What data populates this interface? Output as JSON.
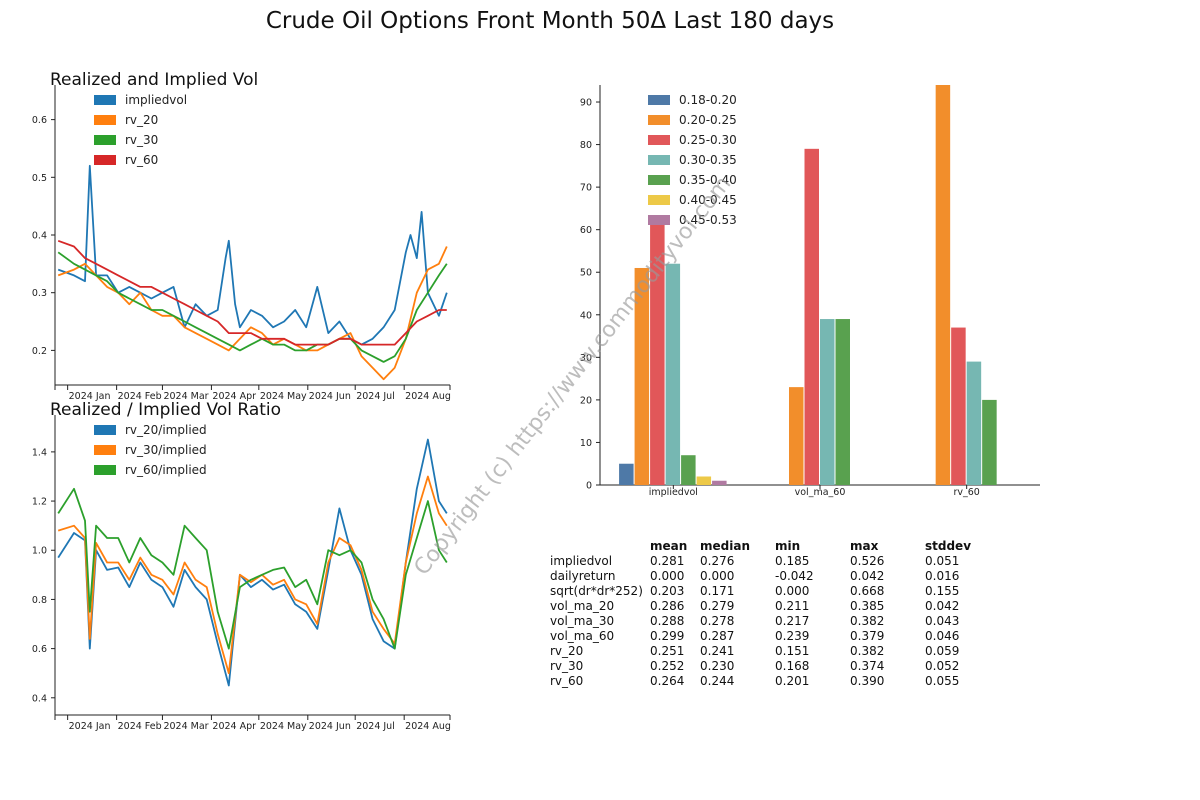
{
  "title": "Crude Oil Options Front Month 50Δ Last 180 days",
  "watermark": "Copyright (c) https://www.commodityvol.com",
  "colors": {
    "impliedvol": "#1f77b4",
    "rv_20": "#ff7f0e",
    "rv_30": "#2ca02c",
    "rv_60": "#d62728",
    "bin_018_020": "#4e79a7",
    "bin_020_025": "#f28e2b",
    "bin_025_030": "#e15759",
    "bin_030_035": "#76b7b2",
    "bin_035_040": "#59a14f",
    "bin_040_045": "#edc948",
    "bin_045_053": "#b07aa1"
  },
  "chart_data": [
    {
      "type": "line",
      "title": "Realized and Implied Vol",
      "xlabel": "",
      "ylabel": "",
      "x_ticks": [
        "2024 Jan",
        "2024 Feb",
        "2024 Mar",
        "2024 Apr",
        "2024 May",
        "2024 Jun",
        "2024 Jul",
        "2024 Aug"
      ],
      "x_range": [
        "2023-12-24",
        "2024-08-30"
      ],
      "ylim": [
        0.14,
        0.66
      ],
      "y_ticks": [
        0.2,
        0.3,
        0.4,
        0.5,
        0.6
      ],
      "legend": "top-left",
      "grid": false,
      "series": [
        {
          "name": "impliedvol",
          "x": [
            "2023-12-26",
            "2024-01-05",
            "2024-01-12",
            "2024-01-15",
            "2024-01-19",
            "2024-01-26",
            "2024-02-02",
            "2024-02-09",
            "2024-02-16",
            "2024-02-23",
            "2024-03-01",
            "2024-03-08",
            "2024-03-15",
            "2024-03-22",
            "2024-03-29",
            "2024-04-05",
            "2024-04-10",
            "2024-04-12",
            "2024-04-16",
            "2024-04-19",
            "2024-04-26",
            "2024-05-03",
            "2024-05-10",
            "2024-05-17",
            "2024-05-24",
            "2024-05-31",
            "2024-06-07",
            "2024-06-14",
            "2024-06-21",
            "2024-06-28",
            "2024-07-05",
            "2024-07-12",
            "2024-07-19",
            "2024-07-26",
            "2024-08-02",
            "2024-08-05",
            "2024-08-09",
            "2024-08-12",
            "2024-08-16",
            "2024-08-23",
            "2024-08-28"
          ],
          "y": [
            0.34,
            0.33,
            0.32,
            0.52,
            0.33,
            0.33,
            0.3,
            0.31,
            0.3,
            0.29,
            0.3,
            0.31,
            0.24,
            0.28,
            0.26,
            0.27,
            0.36,
            0.39,
            0.28,
            0.24,
            0.27,
            0.26,
            0.24,
            0.25,
            0.27,
            0.24,
            0.31,
            0.23,
            0.25,
            0.22,
            0.21,
            0.22,
            0.24,
            0.27,
            0.37,
            0.4,
            0.36,
            0.44,
            0.3,
            0.26,
            0.3
          ]
        },
        {
          "name": "rv_20",
          "x": [
            "2023-12-26",
            "2024-01-05",
            "2024-01-12",
            "2024-01-19",
            "2024-01-26",
            "2024-02-02",
            "2024-02-09",
            "2024-02-16",
            "2024-02-23",
            "2024-03-01",
            "2024-03-08",
            "2024-03-15",
            "2024-03-22",
            "2024-03-29",
            "2024-04-05",
            "2024-04-12",
            "2024-04-19",
            "2024-04-26",
            "2024-05-03",
            "2024-05-10",
            "2024-05-17",
            "2024-05-24",
            "2024-05-31",
            "2024-06-07",
            "2024-06-14",
            "2024-06-21",
            "2024-06-28",
            "2024-07-05",
            "2024-07-12",
            "2024-07-19",
            "2024-07-26",
            "2024-08-02",
            "2024-08-09",
            "2024-08-16",
            "2024-08-23",
            "2024-08-28"
          ],
          "y": [
            0.33,
            0.34,
            0.35,
            0.33,
            0.31,
            0.3,
            0.28,
            0.3,
            0.27,
            0.26,
            0.26,
            0.24,
            0.23,
            0.22,
            0.21,
            0.2,
            0.22,
            0.24,
            0.23,
            0.21,
            0.22,
            0.21,
            0.2,
            0.2,
            0.21,
            0.22,
            0.23,
            0.19,
            0.17,
            0.15,
            0.17,
            0.22,
            0.3,
            0.34,
            0.35,
            0.38
          ]
        },
        {
          "name": "rv_30",
          "x": [
            "2023-12-26",
            "2024-01-05",
            "2024-01-12",
            "2024-01-19",
            "2024-01-26",
            "2024-02-02",
            "2024-02-09",
            "2024-02-16",
            "2024-02-23",
            "2024-03-01",
            "2024-03-08",
            "2024-03-15",
            "2024-03-22",
            "2024-03-29",
            "2024-04-05",
            "2024-04-12",
            "2024-04-19",
            "2024-04-26",
            "2024-05-03",
            "2024-05-10",
            "2024-05-17",
            "2024-05-24",
            "2024-05-31",
            "2024-06-07",
            "2024-06-14",
            "2024-06-21",
            "2024-06-28",
            "2024-07-05",
            "2024-07-12",
            "2024-07-19",
            "2024-07-26",
            "2024-08-02",
            "2024-08-09",
            "2024-08-16",
            "2024-08-23",
            "2024-08-28"
          ],
          "y": [
            0.37,
            0.35,
            0.34,
            0.33,
            0.32,
            0.3,
            0.29,
            0.28,
            0.27,
            0.27,
            0.26,
            0.25,
            0.24,
            0.23,
            0.22,
            0.21,
            0.2,
            0.21,
            0.22,
            0.21,
            0.21,
            0.2,
            0.2,
            0.21,
            0.21,
            0.22,
            0.22,
            0.2,
            0.19,
            0.18,
            0.19,
            0.22,
            0.27,
            0.3,
            0.33,
            0.35
          ]
        },
        {
          "name": "rv_60",
          "x": [
            "2023-12-26",
            "2024-01-05",
            "2024-01-12",
            "2024-01-19",
            "2024-01-26",
            "2024-02-02",
            "2024-02-09",
            "2024-02-16",
            "2024-02-23",
            "2024-03-01",
            "2024-03-08",
            "2024-03-15",
            "2024-03-22",
            "2024-03-29",
            "2024-04-05",
            "2024-04-12",
            "2024-04-19",
            "2024-04-26",
            "2024-05-03",
            "2024-05-10",
            "2024-05-17",
            "2024-05-24",
            "2024-05-31",
            "2024-06-07",
            "2024-06-14",
            "2024-06-21",
            "2024-06-28",
            "2024-07-05",
            "2024-07-12",
            "2024-07-19",
            "2024-07-26",
            "2024-08-02",
            "2024-08-09",
            "2024-08-16",
            "2024-08-23",
            "2024-08-28"
          ],
          "y": [
            0.39,
            0.38,
            0.36,
            0.35,
            0.34,
            0.33,
            0.32,
            0.31,
            0.31,
            0.3,
            0.29,
            0.28,
            0.27,
            0.26,
            0.25,
            0.23,
            0.23,
            0.23,
            0.22,
            0.22,
            0.22,
            0.21,
            0.21,
            0.21,
            0.21,
            0.22,
            0.22,
            0.21,
            0.21,
            0.21,
            0.21,
            0.23,
            0.25,
            0.26,
            0.27,
            0.27
          ]
        }
      ]
    },
    {
      "type": "line",
      "title": "Realized / Implied Vol Ratio",
      "xlabel": "",
      "ylabel": "",
      "x_ticks": [
        "2024 Jan",
        "2024 Feb",
        "2024 Mar",
        "2024 Apr",
        "2024 May",
        "2024 Jun",
        "2024 Jul",
        "2024 Aug"
      ],
      "x_range": [
        "2023-12-24",
        "2024-08-30"
      ],
      "ylim": [
        0.33,
        1.55
      ],
      "y_ticks": [
        0.4,
        0.6,
        0.8,
        1.0,
        1.2,
        1.4
      ],
      "legend": "top-left",
      "grid": false,
      "series": [
        {
          "name": "rv_20/implied",
          "x": [
            "2023-12-26",
            "2024-01-05",
            "2024-01-12",
            "2024-01-15",
            "2024-01-19",
            "2024-01-26",
            "2024-02-02",
            "2024-02-09",
            "2024-02-16",
            "2024-02-23",
            "2024-03-01",
            "2024-03-08",
            "2024-03-15",
            "2024-03-22",
            "2024-03-29",
            "2024-04-05",
            "2024-04-12",
            "2024-04-19",
            "2024-04-26",
            "2024-05-03",
            "2024-05-10",
            "2024-05-17",
            "2024-05-24",
            "2024-05-31",
            "2024-06-07",
            "2024-06-14",
            "2024-06-21",
            "2024-06-28",
            "2024-07-05",
            "2024-07-12",
            "2024-07-19",
            "2024-07-26",
            "2024-08-02",
            "2024-08-09",
            "2024-08-16",
            "2024-08-23",
            "2024-08-28"
          ],
          "y": [
            0.97,
            1.07,
            1.04,
            0.6,
            1.0,
            0.92,
            0.93,
            0.85,
            0.95,
            0.88,
            0.85,
            0.77,
            0.92,
            0.85,
            0.8,
            0.62,
            0.45,
            0.9,
            0.85,
            0.88,
            0.84,
            0.86,
            0.78,
            0.75,
            0.68,
            0.92,
            1.17,
            1.0,
            0.9,
            0.72,
            0.63,
            0.6,
            0.95,
            1.25,
            1.45,
            1.2,
            1.15
          ]
        },
        {
          "name": "rv_30/implied",
          "x": [
            "2023-12-26",
            "2024-01-05",
            "2024-01-12",
            "2024-01-15",
            "2024-01-19",
            "2024-01-26",
            "2024-02-02",
            "2024-02-09",
            "2024-02-16",
            "2024-02-23",
            "2024-03-01",
            "2024-03-08",
            "2024-03-15",
            "2024-03-22",
            "2024-03-29",
            "2024-04-05",
            "2024-04-12",
            "2024-04-19",
            "2024-04-26",
            "2024-05-03",
            "2024-05-10",
            "2024-05-17",
            "2024-05-24",
            "2024-05-31",
            "2024-06-07",
            "2024-06-14",
            "2024-06-21",
            "2024-06-28",
            "2024-07-05",
            "2024-07-12",
            "2024-07-19",
            "2024-07-26",
            "2024-08-02",
            "2024-08-09",
            "2024-08-16",
            "2024-08-23",
            "2024-08-28"
          ],
          "y": [
            1.08,
            1.1,
            1.05,
            0.64,
            1.03,
            0.95,
            0.95,
            0.88,
            0.97,
            0.9,
            0.88,
            0.82,
            0.95,
            0.88,
            0.85,
            0.66,
            0.5,
            0.9,
            0.87,
            0.9,
            0.86,
            0.88,
            0.8,
            0.78,
            0.7,
            0.95,
            1.05,
            1.02,
            0.92,
            0.75,
            0.68,
            0.62,
            0.95,
            1.15,
            1.3,
            1.15,
            1.1
          ]
        },
        {
          "name": "rv_60/implied",
          "x": [
            "2023-12-26",
            "2024-01-05",
            "2024-01-12",
            "2024-01-15",
            "2024-01-19",
            "2024-01-26",
            "2024-02-02",
            "2024-02-09",
            "2024-02-16",
            "2024-02-23",
            "2024-03-01",
            "2024-03-08",
            "2024-03-15",
            "2024-03-22",
            "2024-03-29",
            "2024-04-05",
            "2024-04-12",
            "2024-04-19",
            "2024-04-26",
            "2024-05-03",
            "2024-05-10",
            "2024-05-17",
            "2024-05-24",
            "2024-05-31",
            "2024-06-07",
            "2024-06-14",
            "2024-06-21",
            "2024-06-28",
            "2024-07-05",
            "2024-07-12",
            "2024-07-19",
            "2024-07-26",
            "2024-08-02",
            "2024-08-09",
            "2024-08-16",
            "2024-08-23",
            "2024-08-28"
          ],
          "y": [
            1.15,
            1.25,
            1.12,
            0.75,
            1.1,
            1.05,
            1.05,
            0.95,
            1.05,
            0.98,
            0.95,
            0.9,
            1.1,
            1.05,
            1.0,
            0.75,
            0.6,
            0.85,
            0.88,
            0.9,
            0.92,
            0.93,
            0.85,
            0.88,
            0.78,
            1.0,
            0.98,
            1.0,
            0.95,
            0.8,
            0.72,
            0.6,
            0.9,
            1.05,
            1.2,
            1.0,
            0.95
          ]
        }
      ]
    },
    {
      "type": "bar",
      "title": "",
      "xlabel": "",
      "ylabel": "",
      "categories": [
        "impliedvol",
        "vol_ma_60",
        "rv_60"
      ],
      "ylim": [
        0,
        94
      ],
      "y_ticks": [
        0,
        10,
        20,
        30,
        40,
        50,
        60,
        70,
        80,
        90
      ],
      "legend": "top-left",
      "grid": false,
      "series": [
        {
          "name": "0.18-0.20",
          "values": [
            5,
            0,
            0
          ]
        },
        {
          "name": "0.20-0.25",
          "values": [
            51,
            23,
            94
          ]
        },
        {
          "name": "0.25-0.30",
          "values": [
            62,
            79,
            37
          ]
        },
        {
          "name": "0.30-0.35",
          "values": [
            52,
            39,
            29
          ]
        },
        {
          "name": "0.35-0.40",
          "values": [
            7,
            39,
            20
          ]
        },
        {
          "name": "0.40-0.45",
          "values": [
            2,
            0,
            0
          ]
        },
        {
          "name": "0.45-0.53",
          "values": [
            1,
            0,
            0
          ]
        }
      ]
    },
    {
      "type": "table",
      "columns": [
        "mean",
        "median",
        "min",
        "max",
        "stddev"
      ],
      "rows": [
        {
          "label": "impliedvol",
          "cells": [
            "0.281",
            "0.276",
            "0.185",
            "0.526",
            "0.051"
          ]
        },
        {
          "label": "dailyreturn",
          "cells": [
            "0.000",
            "0.000",
            "-0.042",
            "0.042",
            "0.016"
          ]
        },
        {
          "label": "sqrt(dr*dr*252)",
          "cells": [
            "0.203",
            "0.171",
            "0.000",
            "0.668",
            "0.155"
          ]
        },
        {
          "label": "vol_ma_20",
          "cells": [
            "0.286",
            "0.279",
            "0.211",
            "0.385",
            "0.042"
          ]
        },
        {
          "label": "vol_ma_30",
          "cells": [
            "0.288",
            "0.278",
            "0.217",
            "0.382",
            "0.043"
          ]
        },
        {
          "label": "vol_ma_60",
          "cells": [
            "0.299",
            "0.287",
            "0.239",
            "0.379",
            "0.046"
          ]
        },
        {
          "label": "rv_20",
          "cells": [
            "0.251",
            "0.241",
            "0.151",
            "0.382",
            "0.059"
          ]
        },
        {
          "label": "rv_30",
          "cells": [
            "0.252",
            "0.230",
            "0.168",
            "0.374",
            "0.052"
          ]
        },
        {
          "label": "rv_60",
          "cells": [
            "0.264",
            "0.244",
            "0.201",
            "0.390",
            "0.055"
          ]
        }
      ]
    }
  ]
}
